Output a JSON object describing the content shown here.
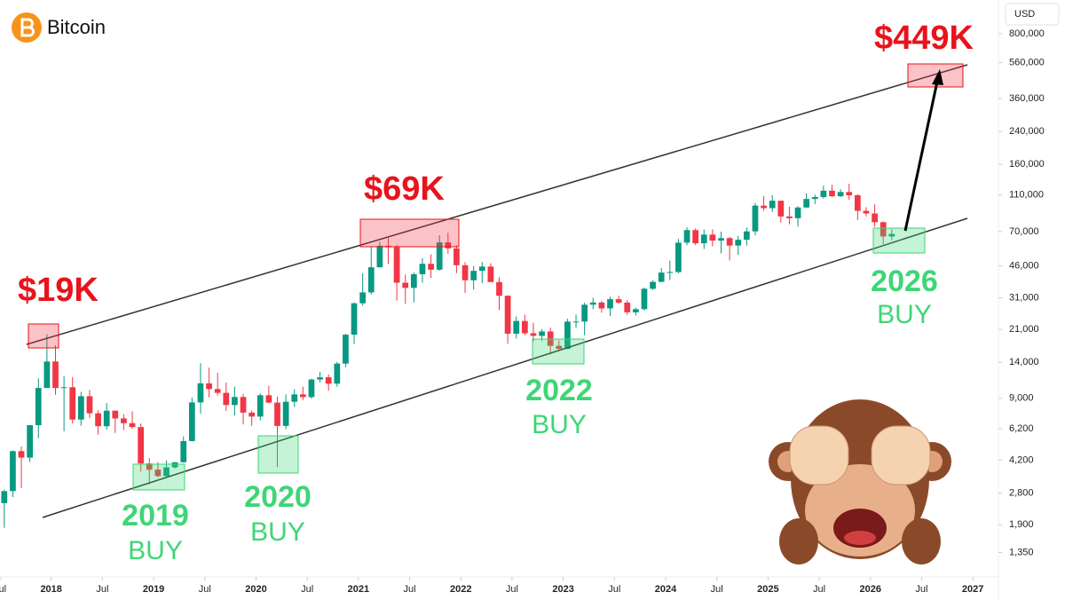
{
  "chart_data": {
    "type": "candlestick",
    "title": "Bitcoin",
    "currency": "USD",
    "log_scale": true,
    "grid": false,
    "up_color": "#089981",
    "down_color": "#f23645",
    "x": [
      "2017-07",
      "2017-08",
      "2017-09",
      "2017-10",
      "2017-11",
      "2017-12",
      "2018-01",
      "2018-02",
      "2018-03",
      "2018-04",
      "2018-05",
      "2018-06",
      "2018-07",
      "2018-08",
      "2018-09",
      "2018-10",
      "2018-11",
      "2018-12",
      "2019-01",
      "2019-02",
      "2019-03",
      "2019-04",
      "2019-05",
      "2019-06",
      "2019-07",
      "2019-08",
      "2019-09",
      "2019-10",
      "2019-11",
      "2019-12",
      "2020-01",
      "2020-02",
      "2020-03",
      "2020-04",
      "2020-05",
      "2020-06",
      "2020-07",
      "2020-08",
      "2020-09",
      "2020-10",
      "2020-11",
      "2020-12",
      "2021-01",
      "2021-02",
      "2021-03",
      "2021-04",
      "2021-05",
      "2021-06",
      "2021-07",
      "2021-08",
      "2021-09",
      "2021-10",
      "2021-11",
      "2021-12",
      "2022-01",
      "2022-02",
      "2022-03",
      "2022-04",
      "2022-05",
      "2022-06",
      "2022-07",
      "2022-08",
      "2022-09",
      "2022-10",
      "2022-11",
      "2022-12",
      "2023-01",
      "2023-02",
      "2023-03",
      "2023-04",
      "2023-05",
      "2023-06",
      "2023-07",
      "2023-08",
      "2023-09",
      "2023-10",
      "2023-11",
      "2023-12",
      "2024-01",
      "2024-02",
      "2024-03",
      "2024-04",
      "2024-05",
      "2024-06",
      "2024-07",
      "2024-08",
      "2024-09",
      "2024-10",
      "2024-11",
      "2024-12",
      "2025-01",
      "2025-02",
      "2025-03",
      "2025-04",
      "2025-05",
      "2025-06",
      "2025-07",
      "2025-08",
      "2025-09",
      "2025-10",
      "2025-11",
      "2025-12",
      "2026-01",
      "2026-02",
      "2026-03"
    ],
    "open": [
      2480,
      2875,
      4700,
      4340,
      6470,
      10230,
      14160,
      10220,
      10320,
      6930,
      9240,
      7490,
      6390,
      7730,
      7030,
      6630,
      6320,
      4040,
      3740,
      3460,
      3850,
      4100,
      5320,
      8560,
      10820,
      10090,
      9630,
      8290,
      9150,
      7550,
      7190,
      9350,
      8540,
      6410,
      8630,
      9450,
      9140,
      11350,
      11660,
      10780,
      13800,
      19700,
      28990,
      33140,
      45140,
      58800,
      57720,
      37330,
      35040,
      41460,
      47100,
      43820,
      61300,
      57000,
      46300,
      38480,
      43190,
      45540,
      37640,
      31790,
      19940,
      23320,
      20050,
      19420,
      20490,
      17170,
      16550,
      23140,
      23150,
      28480,
      29270,
      27220,
      30480,
      29230,
      25940,
      26970,
      34660,
      37720,
      42270,
      42580,
      61130,
      71330,
      60660,
      67490,
      62680,
      64620,
      58970,
      63330,
      70220,
      96410,
      93430,
      102400,
      84350,
      82550,
      94200,
      104600,
      107100,
      115800,
      108200,
      114000,
      109500,
      90400,
      87500,
      78600,
      66000
    ],
    "high": [
      2920,
      4740,
      4980,
      6470,
      11500,
      19800,
      17300,
      11800,
      11700,
      9750,
      9990,
      7770,
      8500,
      7760,
      7410,
      7680,
      6600,
      4310,
      4110,
      4190,
      4110,
      5640,
      9070,
      13880,
      13130,
      12320,
      10950,
      10370,
      9500,
      7750,
      9580,
      10500,
      9190,
      9460,
      10080,
      10380,
      11440,
      12470,
      12070,
      14100,
      19880,
      29300,
      41950,
      58350,
      61790,
      64900,
      59590,
      41330,
      42320,
      50500,
      52920,
      67000,
      69000,
      59100,
      47990,
      45800,
      48190,
      47450,
      40000,
      31990,
      24670,
      25210,
      22800,
      21090,
      21480,
      18380,
      23950,
      25250,
      29190,
      31000,
      29830,
      31440,
      31800,
      30190,
      27490,
      35200,
      38430,
      44730,
      48970,
      64000,
      73800,
      72800,
      71960,
      71950,
      70000,
      65600,
      66500,
      73600,
      99650,
      108300,
      109600,
      102500,
      95000,
      95700,
      111900,
      110500,
      123200,
      124500,
      117900,
      126200,
      111000,
      94500,
      97900,
      79500,
      72000
    ],
    "low": [
      1830,
      2670,
      2980,
      4110,
      5500,
      10700,
      9400,
      6000,
      6600,
      6430,
      7060,
      5760,
      6120,
      5880,
      6100,
      6200,
      3650,
      3130,
      3400,
      3390,
      3800,
      4080,
      5300,
      7450,
      9100,
      9320,
      7710,
      7300,
      6530,
      6430,
      6870,
      8480,
      3850,
      6160,
      8100,
      8830,
      8960,
      10950,
      9880,
      10370,
      13200,
      17570,
      28130,
      32300,
      45000,
      47050,
      30000,
      28800,
      29300,
      37330,
      39600,
      43280,
      53250,
      42000,
      32900,
      34320,
      37160,
      37700,
      26700,
      17600,
      18780,
      19540,
      18150,
      18200,
      15480,
      16260,
      16500,
      21400,
      19550,
      26940,
      25810,
      24800,
      28860,
      25170,
      24900,
      26560,
      34100,
      37600,
      38550,
      41880,
      59300,
      59200,
      56550,
      58400,
      53500,
      49100,
      52550,
      58900,
      66800,
      90500,
      89200,
      78200,
      76600,
      74500,
      93400,
      98200,
      105100,
      107300,
      107300,
      103500,
      80600,
      84400,
      74500,
      60000,
      63000
    ],
    "close": [
      2875,
      4700,
      4340,
      6470,
      10230,
      14160,
      10220,
      10320,
      6930,
      9240,
      7490,
      6390,
      7730,
      7030,
      6630,
      6320,
      4040,
      3740,
      3460,
      3850,
      4100,
      5320,
      8560,
      10820,
      10090,
      9630,
      8290,
      9150,
      7550,
      7190,
      9350,
      8540,
      6410,
      8630,
      9450,
      9140,
      11350,
      11660,
      10780,
      13800,
      19700,
      28990,
      33140,
      45140,
      58800,
      57720,
      37330,
      35040,
      41460,
      47100,
      43820,
      61300,
      57000,
      46300,
      38480,
      43190,
      45540,
      37640,
      31790,
      19940,
      23320,
      20050,
      19420,
      20490,
      17170,
      16550,
      23140,
      23150,
      28480,
      29270,
      27220,
      30480,
      29230,
      25940,
      26970,
      34660,
      37720,
      42270,
      42580,
      61130,
      71330,
      60660,
      67490,
      62680,
      64620,
      58970,
      63330,
      70220,
      96410,
      93430,
      102400,
      84350,
      82550,
      94200,
      104600,
      107100,
      115800,
      108200,
      114000,
      109500,
      90400,
      87500,
      78600,
      66000,
      68000
    ],
    "ylim": [
      1000,
      1210000
    ],
    "yticks": [
      {
        "value": 1350,
        "label": "1,350"
      },
      {
        "value": 1900,
        "label": "1,900"
      },
      {
        "value": 2800,
        "label": "2,800"
      },
      {
        "value": 4200,
        "label": "4,200"
      },
      {
        "value": 6200,
        "label": "6,200"
      },
      {
        "value": 9000,
        "label": "9,000"
      },
      {
        "value": 14000,
        "label": "14,000"
      },
      {
        "value": 21000,
        "label": "21,000"
      },
      {
        "value": 31000,
        "label": "31,000"
      },
      {
        "value": 46000,
        "label": "46,000"
      },
      {
        "value": 70000,
        "label": "70,000"
      },
      {
        "value": 110000,
        "label": "110,000"
      },
      {
        "value": 160000,
        "label": "160,000"
      },
      {
        "value": 240000,
        "label": "240,000"
      },
      {
        "value": 360000,
        "label": "360,000"
      },
      {
        "value": 560000,
        "label": "560,000"
      },
      {
        "value": 800000,
        "label": "800,000"
      }
    ],
    "xlim": [
      "2017-07",
      "2027-04"
    ],
    "xticks": [
      {
        "value": "2017-07",
        "label": "Jul"
      },
      {
        "value": "2018-01",
        "label": "2018"
      },
      {
        "value": "2018-07",
        "label": "Jul"
      },
      {
        "value": "2019-01",
        "label": "2019"
      },
      {
        "value": "2019-07",
        "label": "Jul"
      },
      {
        "value": "2020-01",
        "label": "2020"
      },
      {
        "value": "2020-07",
        "label": "Jul"
      },
      {
        "value": "2021-01",
        "label": "2021"
      },
      {
        "value": "2021-07",
        "label": "Jul"
      },
      {
        "value": "2022-01",
        "label": "2022"
      },
      {
        "value": "2022-07",
        "label": "Jul"
      },
      {
        "value": "2023-01",
        "label": "2023"
      },
      {
        "value": "2023-07",
        "label": "Jul"
      },
      {
        "value": "2024-01",
        "label": "2024"
      },
      {
        "value": "2024-07",
        "label": "Jul"
      },
      {
        "value": "2025-01",
        "label": "2025"
      },
      {
        "value": "2025-07",
        "label": "Jul"
      },
      {
        "value": "2026-01",
        "label": "2026"
      },
      {
        "value": "2026-07",
        "label": "Jul"
      },
      {
        "value": "2027-01",
        "label": "2027"
      }
    ],
    "annotations": [
      {
        "text": "$19K"
      },
      {
        "text": "$69K"
      },
      {
        "text": "$449K"
      },
      {
        "text": "2019"
      },
      {
        "text": "BUY"
      },
      {
        "text": "2020"
      },
      {
        "text": "BUY"
      },
      {
        "text": "2022"
      },
      {
        "text": "BUY"
      },
      {
        "text": "2026"
      },
      {
        "text": "BUY"
      }
    ]
  }
}
